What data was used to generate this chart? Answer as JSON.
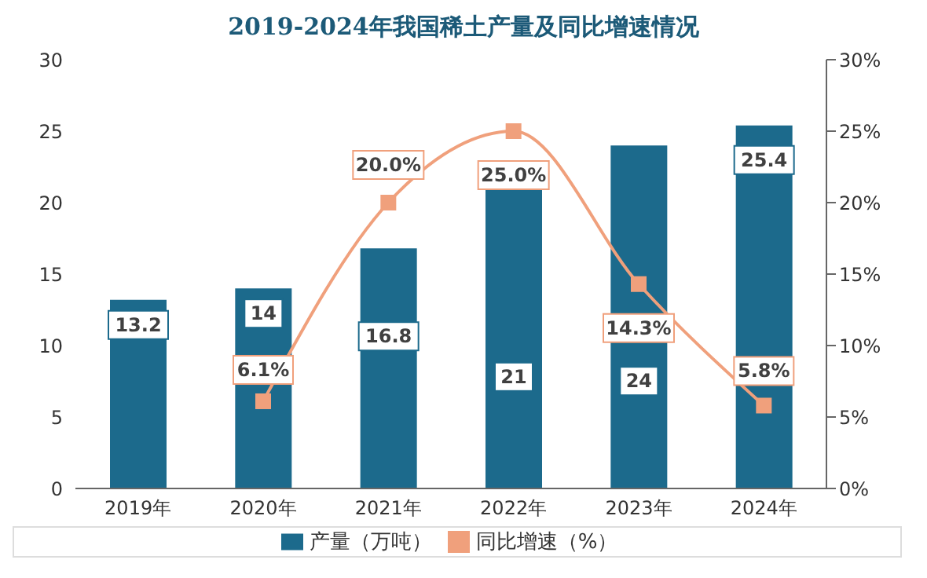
{
  "chart_data": {
    "type": "bar",
    "title": "2019-2024年我国稀土产量及同比增速情况",
    "categories": [
      "2019年",
      "2020年",
      "2021年",
      "2022年",
      "2023年",
      "2024年"
    ],
    "series": [
      {
        "name": "产量（万吨）",
        "color": "#1c6a8c",
        "values": [
          13.2,
          14,
          16.8,
          21,
          24,
          25.4
        ],
        "value_labels": [
          "13.2",
          "14",
          "16.8",
          "21",
          "24",
          "25.4"
        ]
      },
      {
        "name": "同比增速（%）",
        "type": "line",
        "axis": "y2",
        "color": "#f0a07c",
        "marker": "square",
        "values": [
          null,
          6.1,
          20.0,
          25.0,
          14.3,
          5.8
        ],
        "value_labels": [
          null,
          "6.1%",
          "20.0%",
          "25.0%",
          "14.3%",
          "5.8%"
        ]
      }
    ],
    "ylim": [
      0,
      30
    ],
    "yticks": [
      0,
      5,
      10,
      15,
      20,
      25,
      30
    ],
    "y2lim": [
      0,
      30
    ],
    "y2ticks": [
      {
        "value": 0,
        "label": "0%"
      },
      {
        "value": 5,
        "label": "5%"
      },
      {
        "value": 10,
        "label": "10%"
      },
      {
        "value": 15,
        "label": "15%"
      },
      {
        "value": 20,
        "label": "20%"
      },
      {
        "value": 25,
        "label": "25%"
      },
      {
        "value": 30,
        "label": "30%"
      }
    ],
    "grid": false,
    "legend": "bottom"
  }
}
